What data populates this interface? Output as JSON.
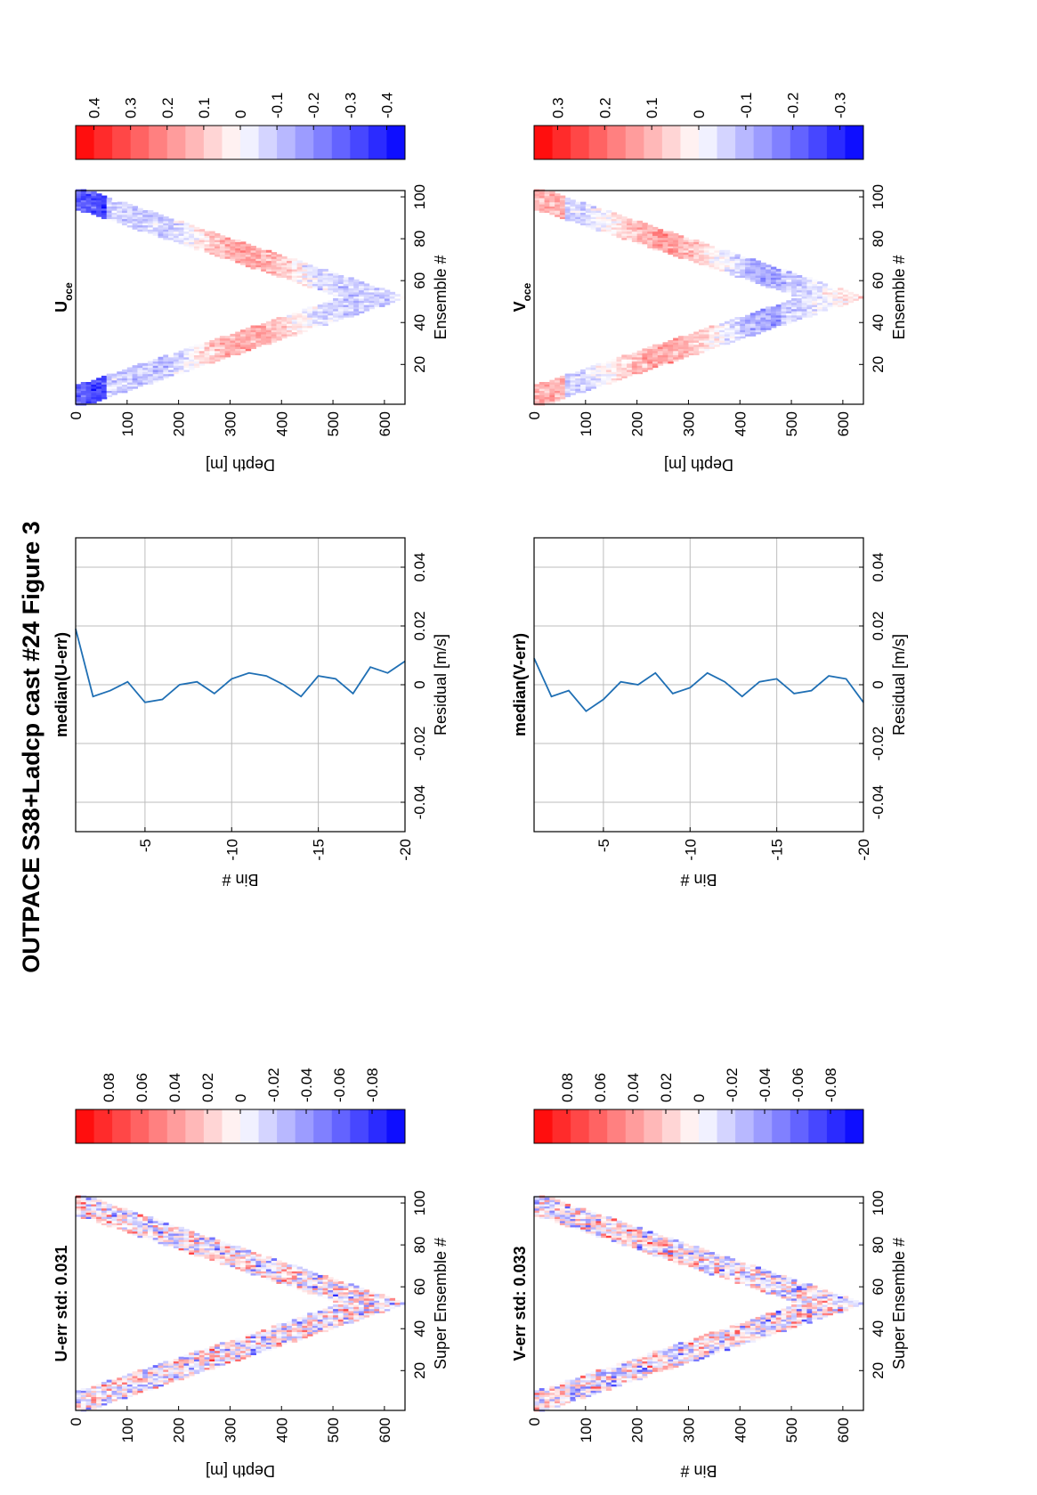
{
  "figure": {
    "title": "OUTPACE S38+Ladcp cast #24  Figure 3"
  },
  "colors": {
    "line": "#1f6fb4",
    "grid": "#bdbdbd",
    "pos": "#ff0000",
    "neg": "#0000ff"
  },
  "chart_data": [
    {
      "id": "u-err",
      "type": "heatmap",
      "title": "U-err std: 0.031",
      "xlabel": "Super Ensemble #",
      "ylabel": "Depth [m]",
      "xlim": [
        1,
        103
      ],
      "ylim": [
        0,
        640
      ],
      "xticks": [
        20,
        40,
        60,
        80,
        100
      ],
      "yticks": [
        0,
        100,
        200,
        300,
        400,
        500,
        600
      ],
      "pattern": "V-shaped cast profile, max depth ~630 m near super ensemble 51",
      "colorbar": {
        "ticks": [
          "0.08",
          "0.06",
          "0.04",
          "0.02",
          "0",
          "-0.02",
          "-0.04",
          "-0.06",
          "-0.08"
        ],
        "range": [
          -0.1,
          0.1
        ],
        "cmap": "blue-white-red"
      }
    },
    {
      "id": "median-u",
      "type": "line",
      "title": "median(U-err)",
      "xlabel": "Residual [m/s]",
      "ylabel": "Bin #",
      "xlim": [
        -0.05,
        0.05
      ],
      "ylim": [
        -20,
        -1
      ],
      "xticks": [
        "-0.04",
        "-0.02",
        "0",
        "0.02",
        "0.04"
      ],
      "yticks": [
        "-5",
        "-10",
        "-15",
        "-20"
      ],
      "grid": true,
      "series": [
        {
          "bin": [
            -1,
            -2,
            -3,
            -4,
            -5,
            -6,
            -7,
            -8,
            -9,
            -10,
            -11,
            -12,
            -13,
            -14,
            -15,
            -16,
            -17,
            -18,
            -19,
            -20
          ],
          "residual": [
            0.019,
            -0.004,
            -0.002,
            0.001,
            -0.006,
            -0.005,
            0.0,
            0.001,
            -0.003,
            0.002,
            0.004,
            0.003,
            0.0,
            -0.004,
            0.003,
            0.002,
            -0.003,
            0.006,
            0.004,
            0.008
          ]
        }
      ]
    },
    {
      "id": "u-oce",
      "type": "heatmap",
      "title": "U",
      "title_sub": "oce",
      "xlabel": "Ensemble #",
      "ylabel": "Depth [m]",
      "xlim": [
        1,
        103
      ],
      "ylim": [
        0,
        640
      ],
      "xticks": [
        20,
        40,
        60,
        80,
        100
      ],
      "yticks": [
        0,
        100,
        200,
        300,
        400,
        500,
        600
      ],
      "pattern": "V-shaped cast profile, max depth ~630 m near ensemble 51",
      "colorbar": {
        "ticks": [
          "0.4",
          "0.3",
          "0.2",
          "0.1",
          "0",
          "-0.1",
          "-0.2",
          "-0.3",
          "-0.4"
        ],
        "range": [
          -0.45,
          0.45
        ],
        "cmap": "blue-white-red"
      }
    },
    {
      "id": "v-err",
      "type": "heatmap",
      "title": "V-err std: 0.033",
      "xlabel": "Super Ensemble #",
      "ylabel": "Bin #",
      "xlim": [
        1,
        103
      ],
      "ylim": [
        0,
        640
      ],
      "xticks": [
        20,
        40,
        60,
        80,
        100
      ],
      "yticks": [
        0,
        100,
        200,
        300,
        400,
        500,
        600
      ],
      "pattern": "V-shaped cast profile, max depth ~630 m near super ensemble 51",
      "colorbar": {
        "ticks": [
          "0.08",
          "0.06",
          "0.04",
          "0.02",
          "0",
          "-0.02",
          "-0.04",
          "-0.06",
          "-0.08"
        ],
        "range": [
          -0.1,
          0.1
        ],
        "cmap": "blue-white-red"
      }
    },
    {
      "id": "median-v",
      "type": "line",
      "title": "median(V-err)",
      "xlabel": "Residual [m/s]",
      "ylabel": "Bin #",
      "xlim": [
        -0.05,
        0.05
      ],
      "ylim": [
        -20,
        -1
      ],
      "xticks": [
        "-0.04",
        "-0.02",
        "0",
        "0.02",
        "0.04"
      ],
      "yticks": [
        "-5",
        "-10",
        "-15",
        "-20"
      ],
      "grid": true,
      "series": [
        {
          "bin": [
            -1,
            -2,
            -3,
            -4,
            -5,
            -6,
            -7,
            -8,
            -9,
            -10,
            -11,
            -12,
            -13,
            -14,
            -15,
            -16,
            -17,
            -18,
            -19,
            -20
          ],
          "residual": [
            0.009,
            -0.004,
            -0.002,
            -0.009,
            -0.005,
            0.001,
            0.0,
            0.004,
            -0.003,
            -0.001,
            0.004,
            0.001,
            -0.004,
            0.001,
            0.002,
            -0.003,
            -0.002,
            0.003,
            0.002,
            -0.006
          ]
        }
      ]
    },
    {
      "id": "v-oce",
      "type": "heatmap",
      "title": "V",
      "title_sub": "oce",
      "xlabel": "Ensemble #",
      "ylabel": "Depth [m]",
      "xlim": [
        1,
        103
      ],
      "ylim": [
        0,
        640
      ],
      "xticks": [
        20,
        40,
        60,
        80,
        100
      ],
      "yticks": [
        0,
        100,
        200,
        300,
        400,
        500,
        600
      ],
      "pattern": "V-shaped cast profile, max depth ~630 m near ensemble 51",
      "colorbar": {
        "ticks": [
          "0.3",
          "0.2",
          "0.1",
          "0",
          "-0.1",
          "-0.2",
          "-0.3"
        ],
        "range": [
          -0.35,
          0.35
        ],
        "cmap": "blue-white-red"
      }
    }
  ]
}
